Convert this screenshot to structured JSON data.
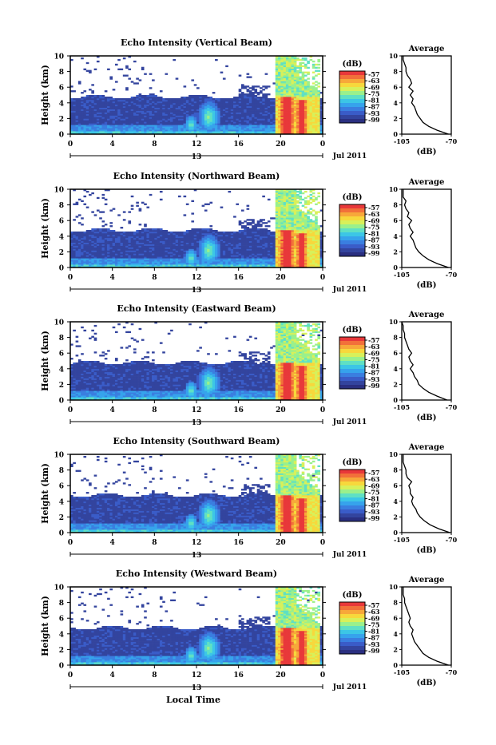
{
  "figure": {
    "xlabel": "Local Time",
    "ylabel": "Height (km)",
    "date_label": "Jul 2011",
    "colorbar_unit": "(dB)",
    "avg_title": "Average",
    "avg_xlabel": "(dB)"
  },
  "colors": {
    "colormap": [
      "#2a2f80",
      "#33449e",
      "#3a5cc8",
      "#3a7ee0",
      "#36a3ec",
      "#3cc6e6",
      "#5fe0c4",
      "#9af08c",
      "#d8f05a",
      "#f7d83c",
      "#f7a83a",
      "#f2703a",
      "#e8383a"
    ],
    "background": "#ffffff",
    "line": "#000000"
  },
  "chart_data": [
    {
      "type": "heatmap",
      "title": "Echo Intensity (Vertical Beam)",
      "xlabel": "",
      "ylabel": "Height (km)",
      "x_ticks": [
        "0",
        "4",
        "8",
        "12",
        "16",
        "20",
        "0"
      ],
      "sub_tick_label": "13",
      "y_ticks": [
        "0",
        "2",
        "4",
        "6",
        "8",
        "10"
      ],
      "xlim": [
        0,
        24
      ],
      "ylim": [
        0,
        10
      ],
      "colorbar": {
        "label": "(dB)",
        "ticks": [
          "-57",
          "-63",
          "-69",
          "-75",
          "-81",
          "-87",
          "-93",
          "-99"
        ],
        "range": [
          -99,
          -57
        ]
      },
      "seed": 11,
      "average_profile": {
        "title": "Average",
        "xlabel": "(dB)",
        "x_ticks": [
          "-105",
          "-70"
        ],
        "xlim": [
          -105,
          -70
        ],
        "y_ticks": [
          "0",
          "2",
          "4",
          "6",
          "8",
          "10"
        ],
        "height": [
          0,
          0.5,
          1,
          1.5,
          2,
          2.5,
          3,
          3.5,
          4,
          4.5,
          5,
          5.5,
          6,
          6.5,
          7,
          7.5,
          8,
          8.5,
          9,
          9.5,
          10
        ],
        "db": [
          -72,
          -80,
          -86,
          -90,
          -92,
          -94,
          -95,
          -96,
          -98,
          -97,
          -99,
          -97,
          -100,
          -98,
          -99,
          -101,
          -102,
          -102,
          -103,
          -104,
          -104
        ]
      }
    },
    {
      "type": "heatmap",
      "title": "Echo Intensity (Northward Beam)",
      "xlabel": "",
      "ylabel": "Height (km)",
      "x_ticks": [
        "0",
        "4",
        "8",
        "12",
        "16",
        "20",
        "0"
      ],
      "sub_tick_label": "13",
      "y_ticks": [
        "0",
        "2",
        "4",
        "6",
        "8",
        "10"
      ],
      "xlim": [
        0,
        24
      ],
      "ylim": [
        0,
        10
      ],
      "colorbar": {
        "label": "(dB)",
        "ticks": [
          "-57",
          "-63",
          "-69",
          "-75",
          "-81",
          "-87",
          "-93",
          "-99"
        ],
        "range": [
          -99,
          -57
        ]
      },
      "seed": 23,
      "average_profile": {
        "title": "Average",
        "xlabel": "(dB)",
        "x_ticks": [
          "-105",
          "-70"
        ],
        "xlim": [
          -105,
          -70
        ],
        "y_ticks": [
          "0",
          "2",
          "4",
          "6",
          "8",
          "10"
        ],
        "height": [
          0,
          0.5,
          1,
          1.5,
          2,
          2.5,
          3,
          3.5,
          4,
          4.5,
          5,
          5.5,
          6,
          6.5,
          7,
          7.5,
          8,
          8.5,
          9,
          9.5,
          10
        ],
        "db": [
          -72,
          -80,
          -86,
          -90,
          -93,
          -95,
          -96,
          -97,
          -99,
          -97,
          -99,
          -100,
          -98,
          -101,
          -100,
          -102,
          -103,
          -102,
          -104,
          -104,
          -104
        ]
      }
    },
    {
      "type": "heatmap",
      "title": "Echo Intensity (Eastward Beam)",
      "xlabel": "",
      "ylabel": "Height (km)",
      "x_ticks": [
        "0",
        "4",
        "8",
        "12",
        "16",
        "20",
        "0"
      ],
      "sub_tick_label": "13",
      "y_ticks": [
        "0",
        "2",
        "4",
        "6",
        "8",
        "10"
      ],
      "xlim": [
        0,
        24
      ],
      "ylim": [
        0,
        10
      ],
      "colorbar": {
        "label": "(dB)",
        "ticks": [
          "-57",
          "-63",
          "-69",
          "-75",
          "-81",
          "-87",
          "-93",
          "-99"
        ],
        "range": [
          -99,
          -57
        ]
      },
      "seed": 37,
      "average_profile": {
        "title": "Average",
        "xlabel": "(dB)",
        "x_ticks": [
          "-105",
          "-70"
        ],
        "xlim": [
          -105,
          -70
        ],
        "y_ticks": [
          "0",
          "2",
          "4",
          "6",
          "8",
          "10"
        ],
        "height": [
          0,
          0.5,
          1,
          1.5,
          2,
          2.5,
          3,
          3.5,
          4,
          4.5,
          5,
          5.5,
          6,
          6.5,
          7,
          7.5,
          8,
          8.5,
          9,
          9.5,
          10
        ],
        "db": [
          -73,
          -80,
          -86,
          -90,
          -93,
          -94,
          -96,
          -97,
          -99,
          -97,
          -99,
          -100,
          -98,
          -100,
          -101,
          -102,
          -103,
          -103,
          -104,
          -104,
          -105
        ]
      }
    },
    {
      "type": "heatmap",
      "title": "Echo Intensity (Southward Beam)",
      "xlabel": "",
      "ylabel": "Height (km)",
      "x_ticks": [
        "0",
        "4",
        "8",
        "12",
        "16",
        "20",
        "0"
      ],
      "sub_tick_label": "13",
      "y_ticks": [
        "0",
        "2",
        "4",
        "6",
        "8",
        "10"
      ],
      "xlim": [
        0,
        24
      ],
      "ylim": [
        0,
        10
      ],
      "colorbar": {
        "label": "(dB)",
        "ticks": [
          "-57",
          "-63",
          "-69",
          "-75",
          "-81",
          "-87",
          "-93",
          "-99"
        ],
        "range": [
          -99,
          -57
        ]
      },
      "seed": 41,
      "average_profile": {
        "title": "Average",
        "xlabel": "(dB)",
        "x_ticks": [
          "-105",
          "-70"
        ],
        "xlim": [
          -105,
          -70
        ],
        "y_ticks": [
          "0",
          "2",
          "4",
          "6",
          "8",
          "10"
        ],
        "height": [
          0,
          0.5,
          1,
          1.5,
          2,
          2.5,
          3,
          3.5,
          4,
          4.5,
          5,
          5.5,
          6,
          6.5,
          7,
          7.5,
          8,
          8.5,
          9,
          9.5,
          10
        ],
        "db": [
          -71,
          -79,
          -85,
          -89,
          -92,
          -94,
          -95,
          -97,
          -98,
          -97,
          -99,
          -99,
          -100,
          -98,
          -101,
          -102,
          -102,
          -103,
          -104,
          -104,
          -104
        ]
      }
    },
    {
      "type": "heatmap",
      "title": "Echo Intensity (Westward Beam)",
      "xlabel": "Local Time",
      "ylabel": "Height (km)",
      "x_ticks": [
        "0",
        "4",
        "8",
        "12",
        "16",
        "20",
        "0"
      ],
      "sub_tick_label": "13",
      "y_ticks": [
        "0",
        "2",
        "4",
        "6",
        "8",
        "10"
      ],
      "xlim": [
        0,
        24
      ],
      "ylim": [
        0,
        10
      ],
      "colorbar": {
        "label": "(dB)",
        "ticks": [
          "-57",
          "-63",
          "-69",
          "-75",
          "-81",
          "-87",
          "-93",
          "-99"
        ],
        "range": [
          -99,
          -57
        ]
      },
      "seed": 53,
      "average_profile": {
        "title": "Average",
        "xlabel": "(dB)",
        "x_ticks": [
          "-105",
          "-70"
        ],
        "xlim": [
          -105,
          -70
        ],
        "y_ticks": [
          "0",
          "2",
          "4",
          "6",
          "8",
          "10"
        ],
        "height": [
          0,
          0.5,
          1,
          1.5,
          2,
          2.5,
          3,
          3.5,
          4,
          4.5,
          5,
          5.5,
          6,
          6.5,
          7,
          7.5,
          8,
          8.5,
          9,
          9.5,
          10
        ],
        "db": [
          -72,
          -80,
          -86,
          -90,
          -92,
          -94,
          -96,
          -97,
          -98,
          -97,
          -99,
          -100,
          -99,
          -100,
          -101,
          -102,
          -103,
          -103,
          -104,
          -104,
          -104
        ]
      }
    }
  ]
}
